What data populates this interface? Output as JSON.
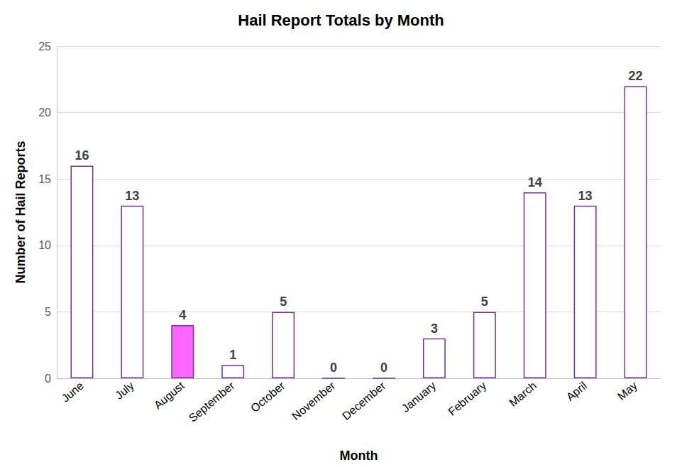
{
  "chart_data": {
    "type": "bar",
    "title": "Hail Report Totals by Month",
    "x_label": "Month",
    "y_label": "Number of Hail Reports",
    "categories": [
      "June",
      "July",
      "August",
      "September",
      "October",
      "November",
      "December",
      "January",
      "February",
      "March",
      "April",
      "May"
    ],
    "values": [
      16,
      13,
      4,
      1,
      5,
      0,
      0,
      3,
      5,
      14,
      13,
      22
    ],
    "colors": [
      "#ffffff",
      "#ffffff",
      "#ff66ff",
      "#ffffff",
      "#ffffff",
      "#ffffff",
      "#ffffff",
      "#ffffff",
      "#ffffff",
      "#ffffff",
      "#ffffff",
      "#ffffff"
    ],
    "ylim": [
      0,
      25
    ],
    "yticks": [
      0,
      5,
      10,
      15,
      20,
      25
    ],
    "grid": true,
    "data_labels": true
  }
}
